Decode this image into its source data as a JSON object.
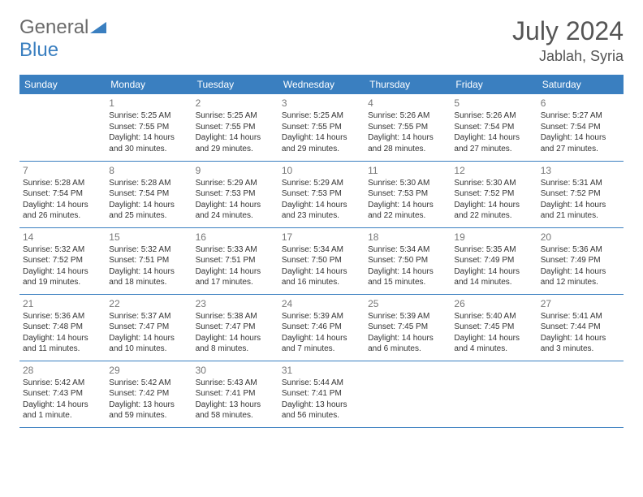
{
  "brand": {
    "part1": "General",
    "part2": "Blue"
  },
  "title": "July 2024",
  "location": "Jablah, Syria",
  "colors": {
    "header_bg": "#3a7fc0",
    "text": "#333333",
    "muted": "#777777",
    "divider": "#3a7fc0",
    "bg": "#ffffff"
  },
  "dayNames": [
    "Sunday",
    "Monday",
    "Tuesday",
    "Wednesday",
    "Thursday",
    "Friday",
    "Saturday"
  ],
  "weeks": [
    [
      null,
      {
        "n": "1",
        "sr": "5:25 AM",
        "ss": "7:55 PM",
        "dl": "14 hours and 30 minutes."
      },
      {
        "n": "2",
        "sr": "5:25 AM",
        "ss": "7:55 PM",
        "dl": "14 hours and 29 minutes."
      },
      {
        "n": "3",
        "sr": "5:25 AM",
        "ss": "7:55 PM",
        "dl": "14 hours and 29 minutes."
      },
      {
        "n": "4",
        "sr": "5:26 AM",
        "ss": "7:55 PM",
        "dl": "14 hours and 28 minutes."
      },
      {
        "n": "5",
        "sr": "5:26 AM",
        "ss": "7:54 PM",
        "dl": "14 hours and 27 minutes."
      },
      {
        "n": "6",
        "sr": "5:27 AM",
        "ss": "7:54 PM",
        "dl": "14 hours and 27 minutes."
      }
    ],
    [
      {
        "n": "7",
        "sr": "5:28 AM",
        "ss": "7:54 PM",
        "dl": "14 hours and 26 minutes."
      },
      {
        "n": "8",
        "sr": "5:28 AM",
        "ss": "7:54 PM",
        "dl": "14 hours and 25 minutes."
      },
      {
        "n": "9",
        "sr": "5:29 AM",
        "ss": "7:53 PM",
        "dl": "14 hours and 24 minutes."
      },
      {
        "n": "10",
        "sr": "5:29 AM",
        "ss": "7:53 PM",
        "dl": "14 hours and 23 minutes."
      },
      {
        "n": "11",
        "sr": "5:30 AM",
        "ss": "7:53 PM",
        "dl": "14 hours and 22 minutes."
      },
      {
        "n": "12",
        "sr": "5:30 AM",
        "ss": "7:52 PM",
        "dl": "14 hours and 22 minutes."
      },
      {
        "n": "13",
        "sr": "5:31 AM",
        "ss": "7:52 PM",
        "dl": "14 hours and 21 minutes."
      }
    ],
    [
      {
        "n": "14",
        "sr": "5:32 AM",
        "ss": "7:52 PM",
        "dl": "14 hours and 19 minutes."
      },
      {
        "n": "15",
        "sr": "5:32 AM",
        "ss": "7:51 PM",
        "dl": "14 hours and 18 minutes."
      },
      {
        "n": "16",
        "sr": "5:33 AM",
        "ss": "7:51 PM",
        "dl": "14 hours and 17 minutes."
      },
      {
        "n": "17",
        "sr": "5:34 AM",
        "ss": "7:50 PM",
        "dl": "14 hours and 16 minutes."
      },
      {
        "n": "18",
        "sr": "5:34 AM",
        "ss": "7:50 PM",
        "dl": "14 hours and 15 minutes."
      },
      {
        "n": "19",
        "sr": "5:35 AM",
        "ss": "7:49 PM",
        "dl": "14 hours and 14 minutes."
      },
      {
        "n": "20",
        "sr": "5:36 AM",
        "ss": "7:49 PM",
        "dl": "14 hours and 12 minutes."
      }
    ],
    [
      {
        "n": "21",
        "sr": "5:36 AM",
        "ss": "7:48 PM",
        "dl": "14 hours and 11 minutes."
      },
      {
        "n": "22",
        "sr": "5:37 AM",
        "ss": "7:47 PM",
        "dl": "14 hours and 10 minutes."
      },
      {
        "n": "23",
        "sr": "5:38 AM",
        "ss": "7:47 PM",
        "dl": "14 hours and 8 minutes."
      },
      {
        "n": "24",
        "sr": "5:39 AM",
        "ss": "7:46 PM",
        "dl": "14 hours and 7 minutes."
      },
      {
        "n": "25",
        "sr": "5:39 AM",
        "ss": "7:45 PM",
        "dl": "14 hours and 6 minutes."
      },
      {
        "n": "26",
        "sr": "5:40 AM",
        "ss": "7:45 PM",
        "dl": "14 hours and 4 minutes."
      },
      {
        "n": "27",
        "sr": "5:41 AM",
        "ss": "7:44 PM",
        "dl": "14 hours and 3 minutes."
      }
    ],
    [
      {
        "n": "28",
        "sr": "5:42 AM",
        "ss": "7:43 PM",
        "dl": "14 hours and 1 minute."
      },
      {
        "n": "29",
        "sr": "5:42 AM",
        "ss": "7:42 PM",
        "dl": "13 hours and 59 minutes."
      },
      {
        "n": "30",
        "sr": "5:43 AM",
        "ss": "7:41 PM",
        "dl": "13 hours and 58 minutes."
      },
      {
        "n": "31",
        "sr": "5:44 AM",
        "ss": "7:41 PM",
        "dl": "13 hours and 56 minutes."
      },
      null,
      null,
      null
    ]
  ],
  "labels": {
    "sunrise": "Sunrise: ",
    "sunset": "Sunset: ",
    "daylight": "Daylight: "
  }
}
